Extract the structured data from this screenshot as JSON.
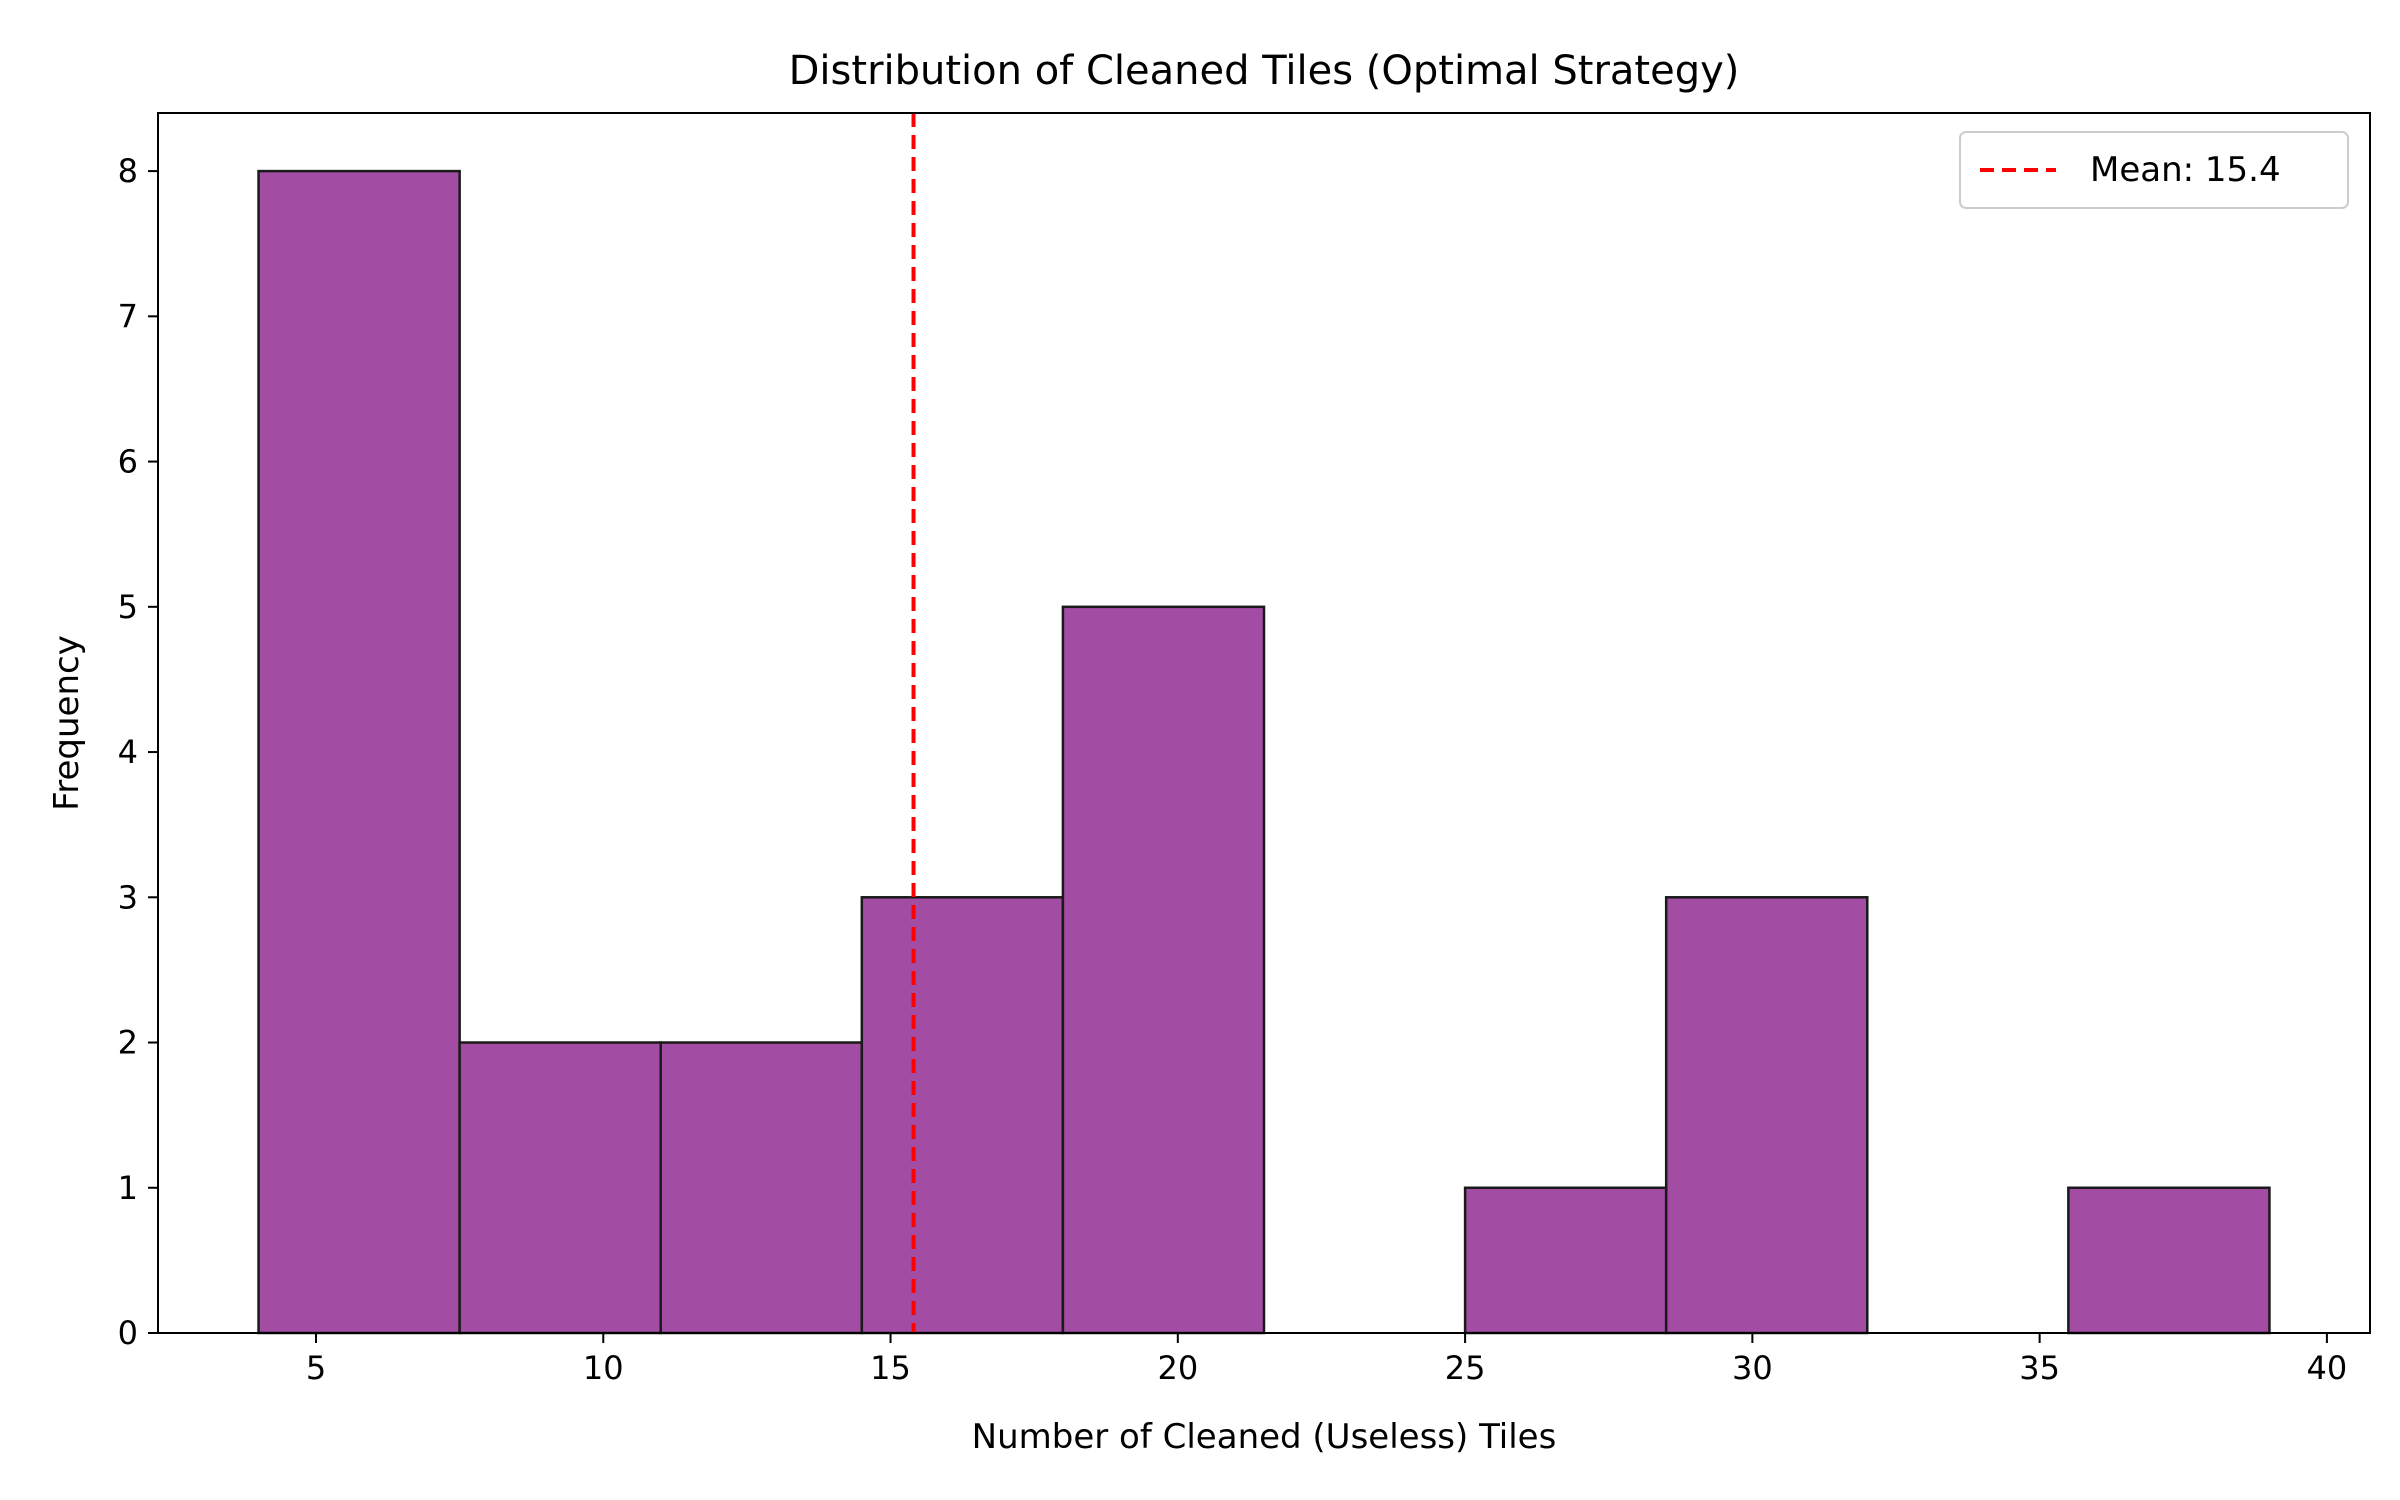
{
  "chart_data": {
    "type": "bar",
    "title": "Distribution of Cleaned Tiles (Optimal Strategy)",
    "xlabel": "Number of Cleaned (Useless) Tiles",
    "ylabel": "Frequency",
    "xlim": [
      2.25,
      40.75
    ],
    "ylim": [
      0,
      8.4
    ],
    "xticks": [
      5,
      10,
      15,
      20,
      25,
      30,
      35,
      40
    ],
    "yticks": [
      0,
      1,
      2,
      3,
      4,
      5,
      6,
      7,
      8
    ],
    "bins": [
      {
        "start": 4,
        "end": 7.5,
        "count": 8
      },
      {
        "start": 7.5,
        "end": 11,
        "count": 2
      },
      {
        "start": 11,
        "end": 14.5,
        "count": 2
      },
      {
        "start": 14.5,
        "end": 18,
        "count": 3
      },
      {
        "start": 18,
        "end": 21.5,
        "count": 5
      },
      {
        "start": 21.5,
        "end": 25,
        "count": 0
      },
      {
        "start": 25,
        "end": 28.5,
        "count": 1
      },
      {
        "start": 28.5,
        "end": 32,
        "count": 3
      },
      {
        "start": 32,
        "end": 35.5,
        "count": 0
      },
      {
        "start": 35.5,
        "end": 39,
        "count": 1
      }
    ],
    "mean_line": {
      "value": 15.4,
      "label": "Mean: 15.4",
      "color": "#ff0000"
    },
    "bar_color": "#a24ca3",
    "edge_color": "#1a1a1a",
    "legend_position": "top-right",
    "grid": false
  }
}
